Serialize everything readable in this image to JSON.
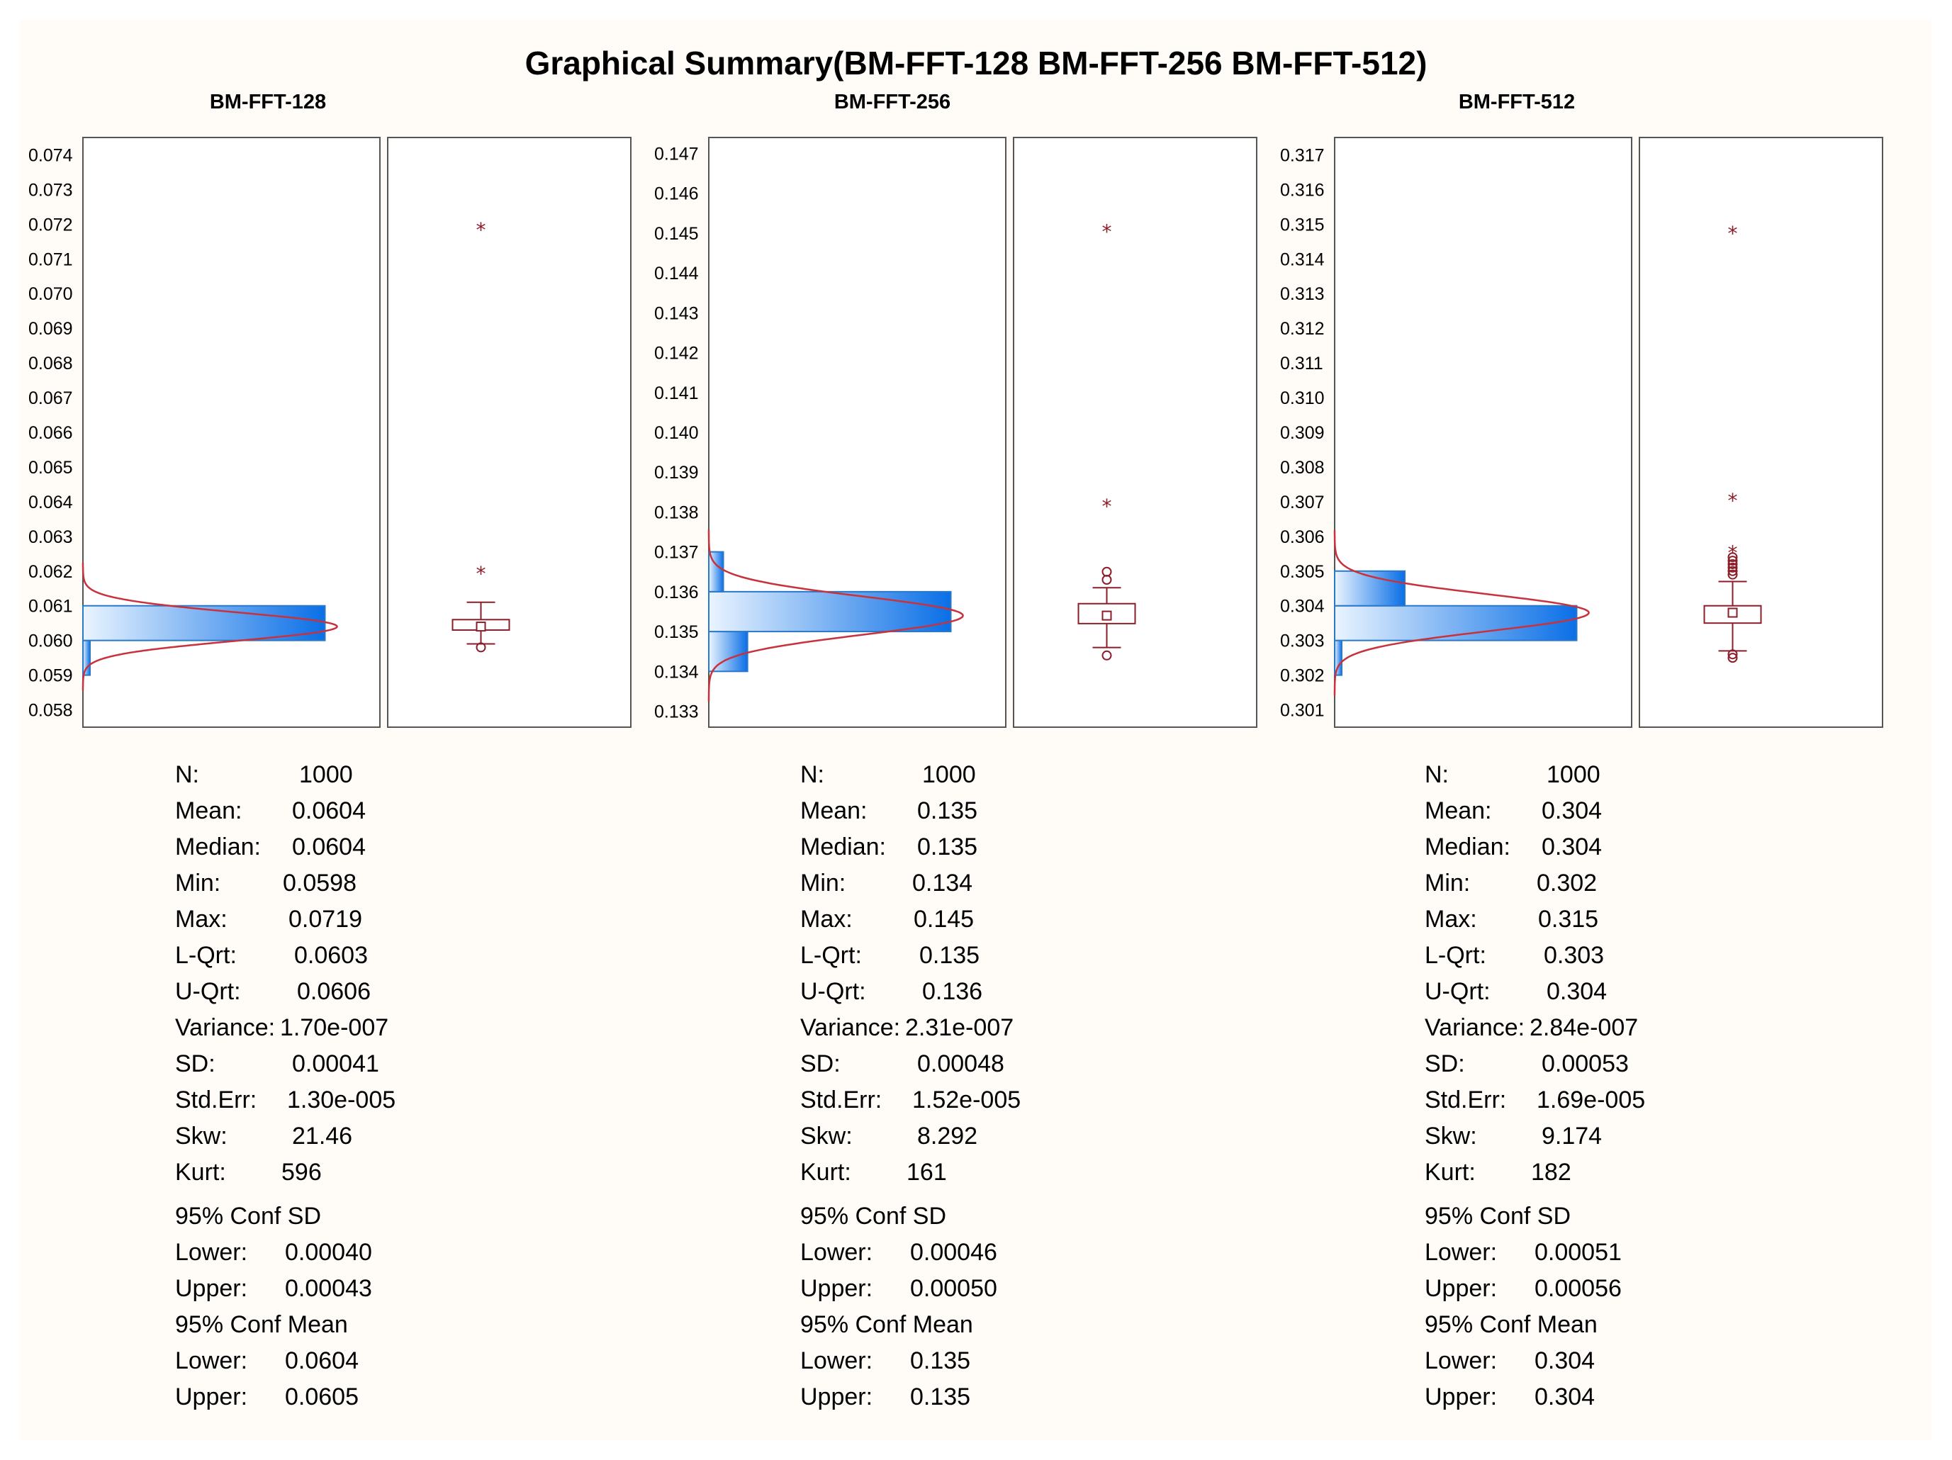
{
  "title": "Graphical Summary(BM-FFT-128 BM-FFT-256 BM-FFT-512)",
  "chart_data": [
    {
      "type": "histogram_boxplot",
      "title": "BM-FFT-128",
      "ylim": [
        0.0575,
        0.0745
      ],
      "yticks": [
        "0.074",
        "0.073",
        "0.072",
        "0.071",
        "0.070",
        "0.069",
        "0.068",
        "0.067",
        "0.066",
        "0.065",
        "0.064",
        "0.063",
        "0.062",
        "0.061",
        "0.060",
        "0.059",
        "0.058"
      ],
      "histogram": {
        "bin_width": 0.001,
        "bins": [
          {
            "start": 0.059,
            "end": 0.06,
            "rel": 0.025
          },
          {
            "start": 0.06,
            "end": 0.061,
            "rel": 1.0
          }
        ]
      },
      "normal_fit": {
        "mean": 0.0604,
        "sd": 0.00041
      },
      "boxplot": {
        "whisker_low": 0.0599,
        "q1": 0.0603,
        "median": 0.0604,
        "q3": 0.0606,
        "whisker_high": 0.0611,
        "mean": 0.0604,
        "mild_outliers": [
          0.0598
        ],
        "extreme_outliers": [
          0.062,
          0.0719
        ]
      },
      "stats": [
        {
          "label": "N:",
          "value": "1000"
        },
        {
          "label": "Mean:",
          "value": "0.0604"
        },
        {
          "label": "Median:",
          "value": "0.0604"
        },
        {
          "label": "Min:",
          "value": "0.0598"
        },
        {
          "label": "Max:",
          "value": "0.0719"
        },
        {
          "label": "L-Qrt:",
          "value": "0.0603"
        },
        {
          "label": "U-Qrt:",
          "value": "0.0606"
        },
        {
          "label": "Variance:",
          "value": "1.70e-007"
        },
        {
          "label": "SD:",
          "value": "0.00041"
        },
        {
          "label": "Std.Err:",
          "value": "1.30e-005"
        },
        {
          "label": "Skw:",
          "value": "21.46"
        },
        {
          "label": "Kurt:",
          "value": "596"
        },
        {
          "label": "95% Conf SD",
          "value": ""
        },
        {
          "label": "Lower:",
          "value": "0.00040"
        },
        {
          "label": "Upper:",
          "value": "0.00043"
        },
        {
          "label": "95% Conf Mean",
          "value": ""
        },
        {
          "label": "Lower:",
          "value": "0.0604"
        },
        {
          "label": "Upper:",
          "value": "0.0605"
        }
      ]
    },
    {
      "type": "histogram_boxplot",
      "title": "BM-FFT-256",
      "ylim": [
        0.1326,
        0.1474
      ],
      "yticks": [
        "0.147",
        "0.146",
        "0.145",
        "0.144",
        "0.143",
        "0.142",
        "0.141",
        "0.140",
        "0.139",
        "0.138",
        "0.137",
        "0.136",
        "0.135",
        "0.134",
        "0.133"
      ],
      "histogram": {
        "bin_width": 0.001,
        "bins": [
          {
            "start": 0.134,
            "end": 0.135,
            "rel": 0.16
          },
          {
            "start": 0.135,
            "end": 0.136,
            "rel": 1.0
          },
          {
            "start": 0.136,
            "end": 0.137,
            "rel": 0.06
          }
        ]
      },
      "normal_fit": {
        "mean": 0.1354,
        "sd": 0.00048
      },
      "boxplot": {
        "whisker_low": 0.1346,
        "q1": 0.1352,
        "median": 0.1355,
        "q3": 0.1357,
        "whisker_high": 0.1361,
        "mean": 0.1354,
        "mild_outliers": [
          0.1344,
          0.1363,
          0.1365
        ],
        "extreme_outliers": [
          0.1382,
          0.1451
        ]
      },
      "stats": [
        {
          "label": "N:",
          "value": "1000"
        },
        {
          "label": "Mean:",
          "value": "0.135"
        },
        {
          "label": "Median:",
          "value": "0.135"
        },
        {
          "label": "Min:",
          "value": "0.134"
        },
        {
          "label": "Max:",
          "value": "0.145"
        },
        {
          "label": "L-Qrt:",
          "value": "0.135"
        },
        {
          "label": "U-Qrt:",
          "value": "0.136"
        },
        {
          "label": "Variance:",
          "value": "2.31e-007"
        },
        {
          "label": "SD:",
          "value": "0.00048"
        },
        {
          "label": "Std.Err:",
          "value": "1.52e-005"
        },
        {
          "label": "Skw:",
          "value": "8.292"
        },
        {
          "label": "Kurt:",
          "value": "161"
        },
        {
          "label": "95% Conf SD",
          "value": ""
        },
        {
          "label": "Lower:",
          "value": "0.00046"
        },
        {
          "label": "Upper:",
          "value": "0.00050"
        },
        {
          "label": "95% Conf Mean",
          "value": ""
        },
        {
          "label": "Lower:",
          "value": "0.135"
        },
        {
          "label": "Upper:",
          "value": "0.135"
        }
      ]
    },
    {
      "type": "histogram_boxplot",
      "title": "BM-FFT-512",
      "ylim": [
        0.3005,
        0.3175
      ],
      "yticks": [
        "0.317",
        "0.316",
        "0.315",
        "0.314",
        "0.313",
        "0.312",
        "0.311",
        "0.310",
        "0.309",
        "0.308",
        "0.307",
        "0.306",
        "0.305",
        "0.304",
        "0.303",
        "0.302",
        "0.301"
      ],
      "histogram": {
        "bin_width": 0.001,
        "bins": [
          {
            "start": 0.302,
            "end": 0.303,
            "rel": 0.015
          },
          {
            "start": 0.303,
            "end": 0.304,
            "rel": 1.0
          },
          {
            "start": 0.304,
            "end": 0.305,
            "rel": 0.29
          }
        ]
      },
      "normal_fit": {
        "mean": 0.3038,
        "sd": 0.00053
      },
      "boxplot": {
        "whisker_low": 0.3027,
        "q1": 0.3035,
        "median": 0.3038,
        "q3": 0.304,
        "whisker_high": 0.3047,
        "mean": 0.3038,
        "mild_outliers": [
          0.3025,
          0.3026,
          0.3049,
          0.305,
          0.3051,
          0.3052,
          0.3053,
          0.3054
        ],
        "extreme_outliers": [
          0.3056,
          0.3071,
          0.3148
        ]
      },
      "stats": [
        {
          "label": "N:",
          "value": "1000"
        },
        {
          "label": "Mean:",
          "value": "0.304"
        },
        {
          "label": "Median:",
          "value": "0.304"
        },
        {
          "label": "Min:",
          "value": "0.302"
        },
        {
          "label": "Max:",
          "value": "0.315"
        },
        {
          "label": "L-Qrt:",
          "value": "0.303"
        },
        {
          "label": "U-Qrt:",
          "value": "0.304"
        },
        {
          "label": "Variance:",
          "value": "2.84e-007"
        },
        {
          "label": "SD:",
          "value": "0.00053"
        },
        {
          "label": "Std.Err:",
          "value": "1.69e-005"
        },
        {
          "label": "Skw:",
          "value": "9.174"
        },
        {
          "label": "Kurt:",
          "value": "182"
        },
        {
          "label": "95% Conf SD",
          "value": ""
        },
        {
          "label": "Lower:",
          "value": "0.00051"
        },
        {
          "label": "Upper:",
          "value": "0.00056"
        },
        {
          "label": "95% Conf Mean",
          "value": ""
        },
        {
          "label": "Lower:",
          "value": "0.304"
        },
        {
          "label": "Upper:",
          "value": "0.304"
        }
      ]
    }
  ],
  "colors": {
    "histogram_dark": "#0a6fe6",
    "histogram_light": "#eaf4ff",
    "curve": "#c8323c",
    "box": "#8c1e2a",
    "frame": "#555555"
  }
}
